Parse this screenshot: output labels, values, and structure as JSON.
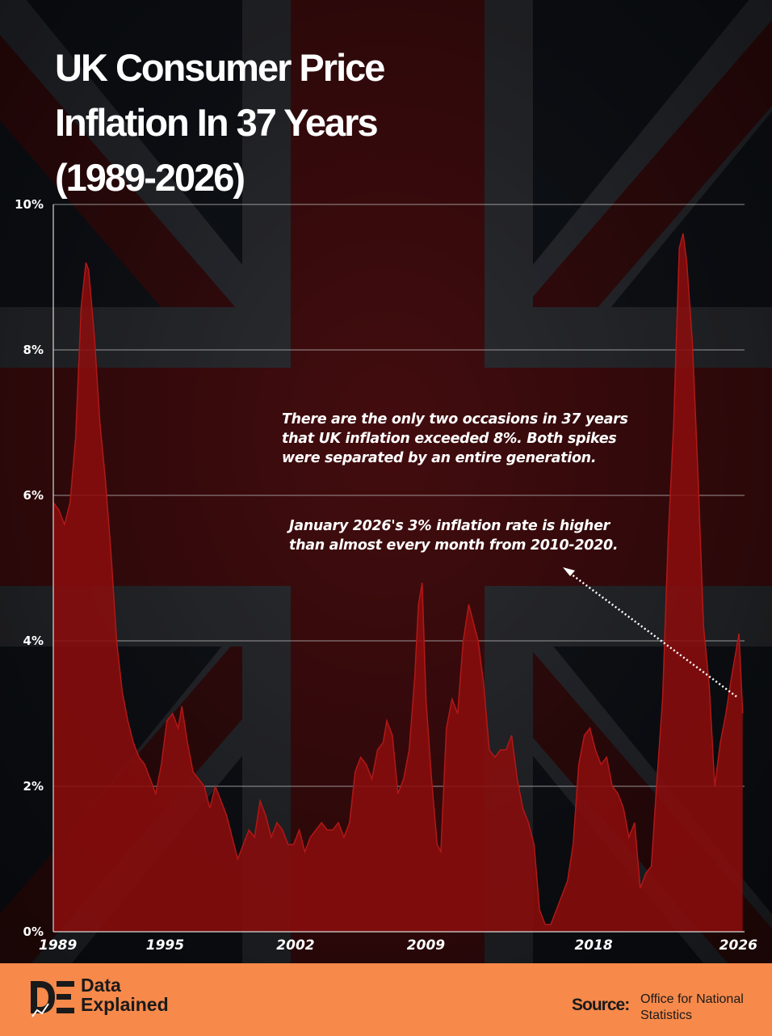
{
  "title_lines": [
    "UK Consumer Price",
    "Inflation In 37 Years",
    "(1989-2026)"
  ],
  "annotations": {
    "spikes": [
      "There are the only two occasions in 37 years",
      "that UK inflation exceeded 8%. Both spikes",
      "were separated by an entire generation."
    ],
    "january_2026": [
      "January 2026's 3% inflation rate is higher",
      "than almost every month from 2010-2020."
    ]
  },
  "footer": {
    "brand_lines": [
      "Data",
      "Explained"
    ],
    "source_label": "Source:",
    "source_lines": [
      "Office for National",
      "Statistics"
    ]
  },
  "colors": {
    "area_fill": "#8a0d0d",
    "area_line": "#b01818",
    "footer_bg": "#f7894a",
    "arrow": "#ffffff"
  },
  "chart_data": {
    "type": "area",
    "ylim": [
      0,
      10
    ],
    "xlim": [
      1989.0,
      2026.1
    ],
    "y_ticks": [
      "0%",
      "2%",
      "4%",
      "6%",
      "8%",
      "10%"
    ],
    "y_tick_values": [
      0,
      2,
      4,
      6,
      8,
      10
    ],
    "x_ticks": [
      "1989",
      "1995",
      "2002",
      "2009",
      "2018",
      "2026"
    ],
    "x_tick_values": [
      1989,
      1995,
      2002,
      2009,
      2018,
      2026
    ],
    "grid": true,
    "series": [
      {
        "x": [
          1989.0,
          1989.3,
          1989.6,
          1989.9,
          1990.2,
          1990.5,
          1990.75,
          1990.9,
          1991.2,
          1991.5,
          1991.8,
          1992.1,
          1992.4,
          1992.7,
          1993.0,
          1993.3,
          1993.6,
          1993.9,
          1994.2,
          1994.5,
          1994.8,
          1995.1,
          1995.4,
          1995.7,
          1995.9,
          1996.2,
          1996.5,
          1996.8,
          1997.1,
          1997.4,
          1997.7,
          1998.0,
          1998.3,
          1998.6,
          1998.9,
          1999.2,
          1999.5,
          1999.8,
          2000.1,
          2000.4,
          2000.7,
          2001.0,
          2001.3,
          2001.6,
          2001.9,
          2002.2,
          2002.5,
          2002.8,
          2003.1,
          2003.4,
          2003.7,
          2004.0,
          2004.3,
          2004.6,
          2004.9,
          2005.2,
          2005.5,
          2005.8,
          2006.1,
          2006.4,
          2006.7,
          2006.9,
          2007.2,
          2007.5,
          2007.8,
          2008.1,
          2008.4,
          2008.6,
          2008.8,
          2009.0,
          2009.3,
          2009.6,
          2009.8,
          2010.1,
          2010.4,
          2010.7,
          2011.0,
          2011.3,
          2011.6,
          2011.8,
          2012.1,
          2012.4,
          2012.7,
          2013.0,
          2013.3,
          2013.6,
          2013.9,
          2014.2,
          2014.5,
          2014.8,
          2015.1,
          2015.4,
          2015.7,
          2016.0,
          2016.3,
          2016.6,
          2016.9,
          2017.2,
          2017.5,
          2017.8,
          2018.1,
          2018.4,
          2018.7,
          2019.0,
          2019.3,
          2019.6,
          2019.9,
          2020.2,
          2020.5,
          2020.8,
          2021.1,
          2021.4,
          2021.7,
          2022.0,
          2022.3,
          2022.6,
          2022.8,
          2023.0,
          2023.3,
          2023.6,
          2023.9,
          2024.2,
          2024.5,
          2024.8,
          2025.1,
          2025.4,
          2025.6,
          2025.8,
          2026.0
        ],
        "y": [
          5.9,
          5.8,
          5.6,
          5.9,
          6.8,
          8.6,
          9.2,
          9.1,
          8.2,
          7.0,
          6.2,
          5.2,
          4.0,
          3.3,
          2.9,
          2.6,
          2.4,
          2.3,
          2.1,
          1.9,
          2.3,
          2.9,
          3.0,
          2.8,
          3.1,
          2.6,
          2.2,
          2.1,
          2.0,
          1.7,
          2.0,
          1.8,
          1.6,
          1.3,
          1.0,
          1.2,
          1.4,
          1.3,
          1.8,
          1.6,
          1.3,
          1.5,
          1.4,
          1.2,
          1.2,
          1.4,
          1.1,
          1.3,
          1.4,
          1.5,
          1.4,
          1.4,
          1.5,
          1.3,
          1.5,
          2.2,
          2.4,
          2.3,
          2.1,
          2.5,
          2.6,
          2.9,
          2.7,
          1.9,
          2.1,
          2.5,
          3.5,
          4.5,
          4.8,
          3.2,
          2.1,
          1.2,
          1.1,
          2.8,
          3.2,
          3.0,
          4.0,
          4.5,
          4.2,
          4.0,
          3.4,
          2.5,
          2.4,
          2.5,
          2.5,
          2.7,
          2.1,
          1.7,
          1.5,
          1.2,
          0.3,
          0.1,
          0.1,
          0.3,
          0.5,
          0.7,
          1.2,
          2.3,
          2.7,
          2.8,
          2.5,
          2.3,
          2.4,
          2.0,
          1.9,
          1.7,
          1.3,
          1.5,
          0.6,
          0.8,
          0.9,
          2.1,
          3.2,
          5.4,
          7.0,
          9.4,
          9.6,
          9.2,
          8.1,
          6.3,
          4.2,
          3.4,
          2.0,
          2.6,
          3.0,
          3.5,
          3.8,
          4.1,
          3.0
        ]
      }
    ]
  }
}
